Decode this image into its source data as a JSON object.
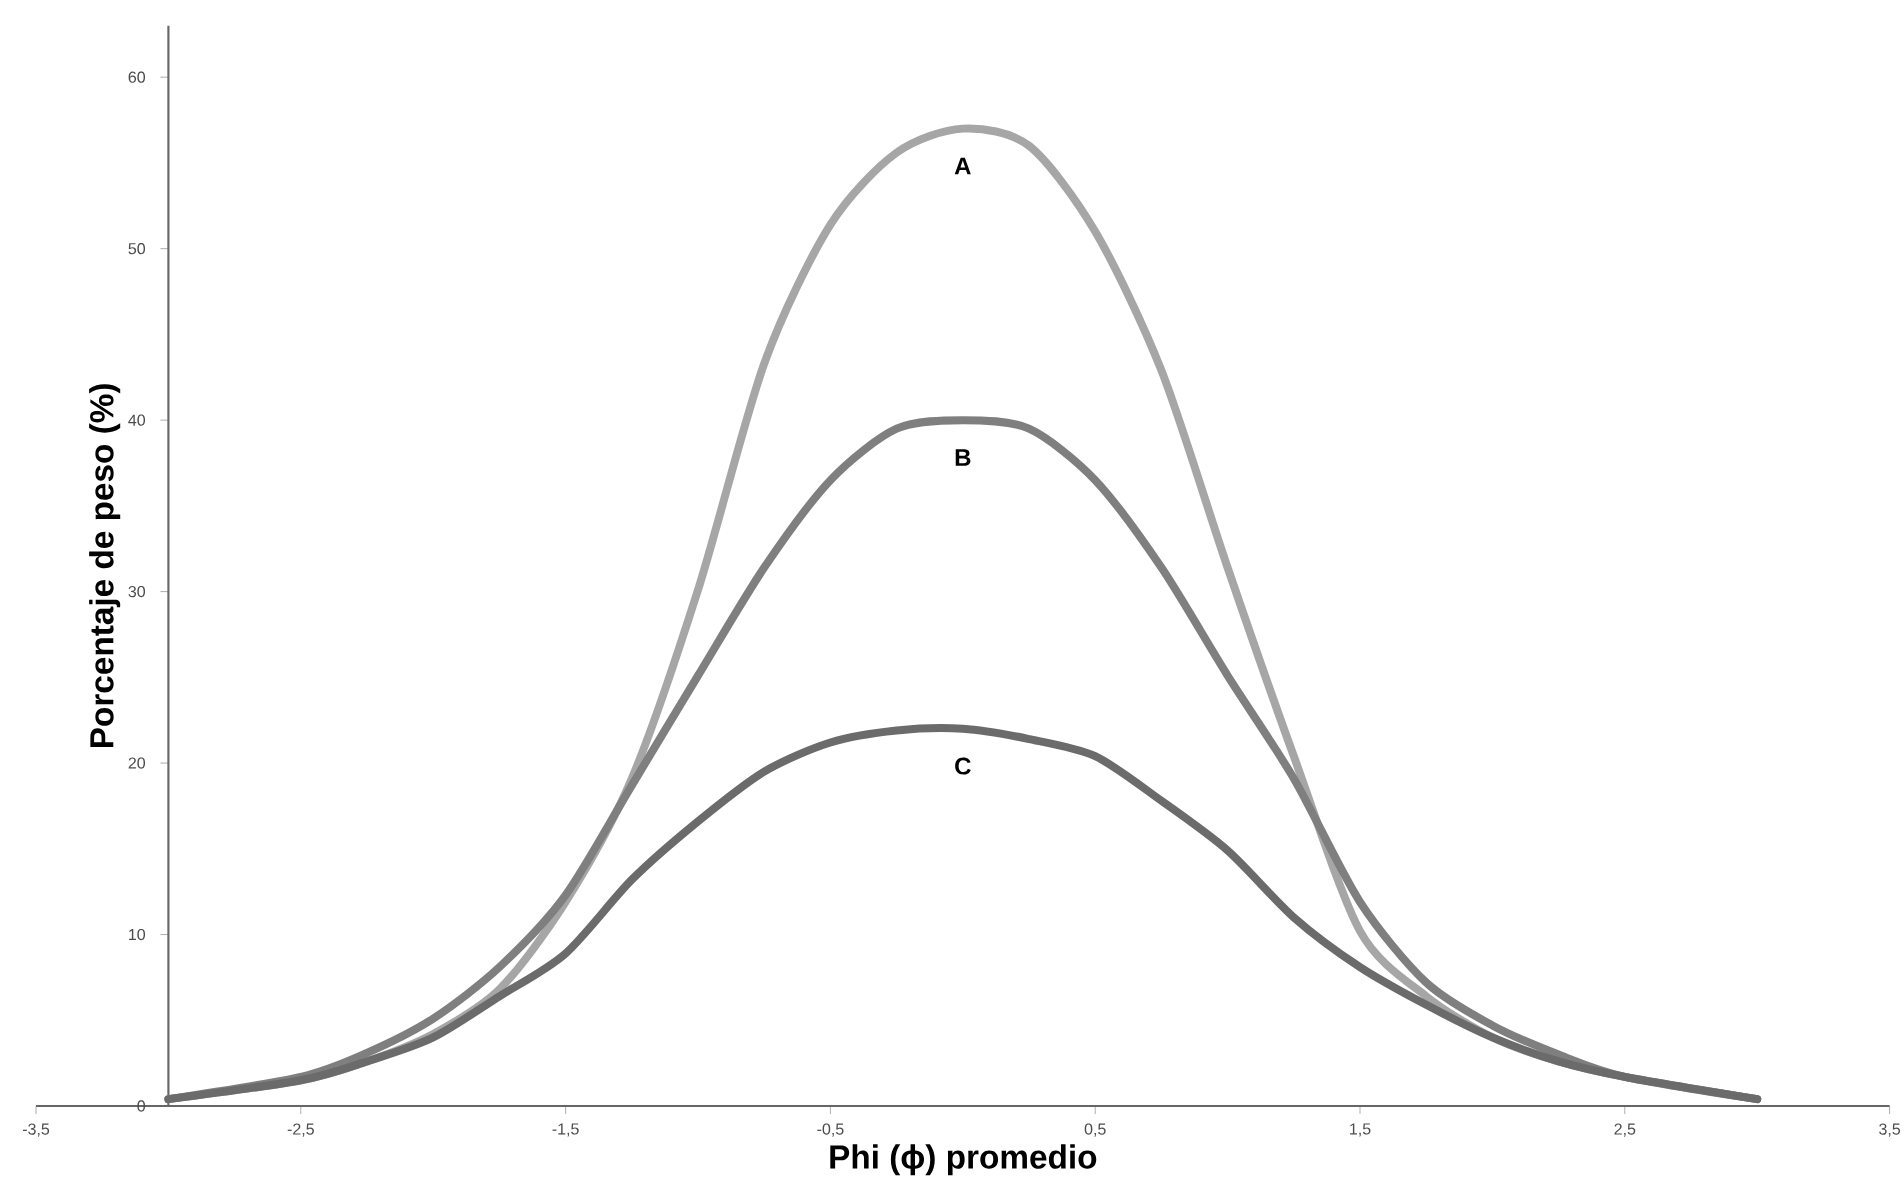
{
  "chart_data": {
    "type": "line",
    "xlabel": "Phi (ϕ) promedio",
    "ylabel": "Porcentaje de peso (%)",
    "x": [
      -3,
      -2.5,
      -2.25,
      -2,
      -1.75,
      -1.5,
      -1.25,
      -1,
      -0.75,
      -0.5,
      -0.25,
      0,
      0.25,
      0.5,
      0.75,
      1,
      1.25,
      1.5,
      1.75,
      2,
      2.25,
      2.5,
      3
    ],
    "series": [
      {
        "name": "A",
        "color": "#a6a6a6",
        "values": [
          0.4,
          1.5,
          2.6,
          4.2,
          6.8,
          11.9,
          19.1,
          30.1,
          43.3,
          51.4,
          55.6,
          57,
          56,
          51,
          42.9,
          31.4,
          20.4,
          10.2,
          6.4,
          4.0,
          2.6,
          1.7,
          0.4
        ]
      },
      {
        "name": "B",
        "color": "#7f7f7f",
        "values": [
          0.4,
          1.7,
          3.1,
          5.1,
          8.1,
          12.3,
          18.7,
          25.1,
          31.4,
          36.5,
          39.5,
          40,
          39.5,
          36.5,
          31.4,
          25.1,
          19.1,
          11.9,
          7.2,
          4.7,
          3.0,
          1.7,
          0.4
        ]
      },
      {
        "name": "C",
        "color": "#6b6b6b",
        "values": [
          0.4,
          1.5,
          2.6,
          4.0,
          6.4,
          8.9,
          13.2,
          16.6,
          19.5,
          21.2,
          21.9,
          22,
          21.4,
          20.4,
          17.8,
          14.9,
          11.0,
          8.1,
          5.9,
          4.0,
          2.6,
          1.7,
          0.4
        ]
      }
    ],
    "xlim": [
      -3.5,
      3.5
    ],
    "ylim": [
      0,
      63
    ],
    "xticks": [
      {
        "value": -3.5,
        "label": "-3,5"
      },
      {
        "value": -2.5,
        "label": "-2,5"
      },
      {
        "value": -1.5,
        "label": "-1,5"
      },
      {
        "value": -0.5,
        "label": "-0,5"
      },
      {
        "value": 0.5,
        "label": "0,5"
      },
      {
        "value": 1.5,
        "label": "1,5"
      },
      {
        "value": 2.5,
        "label": "2,5"
      },
      {
        "value": 3.5,
        "label": "3,5"
      }
    ],
    "yticks": [
      0,
      10,
      20,
      30,
      40,
      50,
      60
    ]
  }
}
